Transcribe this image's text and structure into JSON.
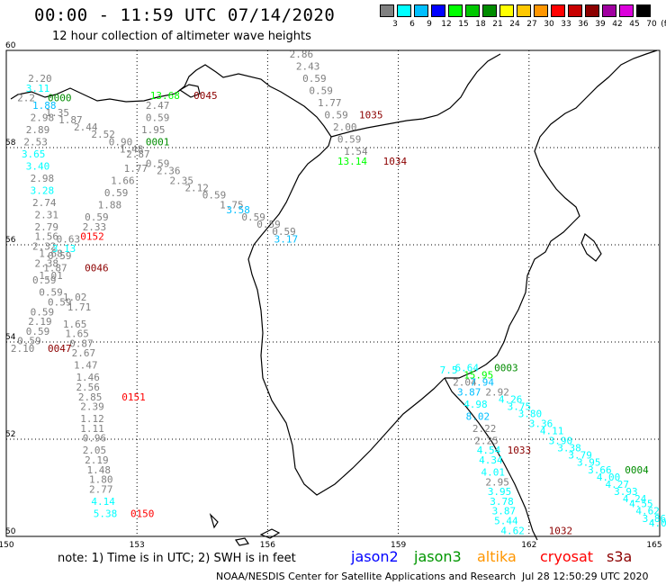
{
  "header": {
    "title": "00:00 - 11:59 UTC 07/14/2020",
    "subtitle": "12 hour collection of altimeter wave heights"
  },
  "legend": {
    "unit": "(ft)",
    "bins": [
      {
        "label": "3",
        "color": "#808080"
      },
      {
        "label": "6",
        "color": "#00ffff"
      },
      {
        "label": "9",
        "color": "#00bfff"
      },
      {
        "label": "12",
        "color": "#0000ff"
      },
      {
        "label": "15",
        "color": "#00ff00"
      },
      {
        "label": "18",
        "color": "#00c800"
      },
      {
        "label": "21",
        "color": "#008c00"
      },
      {
        "label": "24",
        "color": "#ffff00"
      },
      {
        "label": "27",
        "color": "#ffc800"
      },
      {
        "label": "30",
        "color": "#ff9600"
      },
      {
        "label": "33",
        "color": "#ff0000"
      },
      {
        "label": "36",
        "color": "#c80000"
      },
      {
        "label": "39",
        "color": "#8c0000"
      },
      {
        "label": "42",
        "color": "#a000a0"
      },
      {
        "label": "45",
        "color": "#dc00dc"
      },
      {
        "label": "70",
        "color": "#000000"
      }
    ]
  },
  "map": {
    "lon_range": [
      150,
      165
    ],
    "lat_range": [
      50,
      60
    ],
    "lon_ticks": [
      "150",
      "153",
      "156",
      "159",
      "162",
      "165"
    ],
    "lat_ticks": [
      "50",
      "52",
      "54",
      "56",
      "58",
      "60"
    ],
    "grid": "dotted"
  },
  "satellites": {
    "jason2": {
      "label": "jason2",
      "color": "#0000ff"
    },
    "jason3": {
      "label": "jason3",
      "color": "#009600"
    },
    "altika": {
      "label": "altika",
      "color": "#ff9600"
    },
    "cryosat": {
      "label": "cryosat",
      "color": "#ff0000"
    },
    "s3a": {
      "label": "s3a",
      "color": "#8c0000"
    }
  },
  "footer": {
    "note": "note: 1) Time is in UTC; 2) SWH is in feet",
    "credit": "NOAA/NESDIS Center for Satellite Applications and Research",
    "stamp": "Jul 28 12:50:29 UTC 2020"
  },
  "labels": [
    {
      "t": "2.20",
      "lon": 150.5,
      "lat": 59.35,
      "c": "#808080"
    },
    {
      "t": "3.11",
      "lon": 150.45,
      "lat": 59.15,
      "c": "#00ffff"
    },
    {
      "t": "2.2",
      "lon": 150.25,
      "lat": 58.95,
      "c": "#808080"
    },
    {
      "t": "0000",
      "lon": 150.95,
      "lat": 58.95,
      "c": "#008c00"
    },
    {
      "t": "1.88",
      "lon": 150.6,
      "lat": 58.8,
      "c": "#00bfff"
    },
    {
      "t": "1.35",
      "lon": 150.9,
      "lat": 58.65,
      "c": "#808080"
    },
    {
      "t": "2.98",
      "lon": 150.55,
      "lat": 58.55,
      "c": "#808080"
    },
    {
      "t": "1.87",
      "lon": 151.2,
      "lat": 58.5,
      "c": "#808080"
    },
    {
      "t": "2.89",
      "lon": 150.45,
      "lat": 58.3,
      "c": "#808080"
    },
    {
      "t": "2.44",
      "lon": 151.55,
      "lat": 58.35,
      "c": "#808080"
    },
    {
      "t": "2.52",
      "lon": 151.95,
      "lat": 58.2,
      "c": "#808080"
    },
    {
      "t": "2.53",
      "lon": 150.4,
      "lat": 58.05,
      "c": "#808080"
    },
    {
      "t": "0.90",
      "lon": 152.35,
      "lat": 58.05,
      "c": "#808080"
    },
    {
      "t": "0001",
      "lon": 153.2,
      "lat": 58.05,
      "c": "#008c00"
    },
    {
      "t": "3.65",
      "lon": 150.35,
      "lat": 57.8,
      "c": "#00ffff"
    },
    {
      "t": "1.48",
      "lon": 152.6,
      "lat": 57.9,
      "c": "#808080"
    },
    {
      "t": "2.87",
      "lon": 152.75,
      "lat": 57.8,
      "c": "#808080"
    },
    {
      "t": "3.40",
      "lon": 150.45,
      "lat": 57.55,
      "c": "#00ffff"
    },
    {
      "t": "0.59",
      "lon": 153.2,
      "lat": 57.6,
      "c": "#808080"
    },
    {
      "t": "1.77",
      "lon": 152.7,
      "lat": 57.5,
      "c": "#808080"
    },
    {
      "t": "2.98",
      "lon": 150.55,
      "lat": 57.3,
      "c": "#808080"
    },
    {
      "t": "2.36",
      "lon": 153.45,
      "lat": 57.45,
      "c": "#808080"
    },
    {
      "t": "1.66",
      "lon": 152.4,
      "lat": 57.25,
      "c": "#808080"
    },
    {
      "t": "2.35",
      "lon": 153.75,
      "lat": 57.25,
      "c": "#808080"
    },
    {
      "t": "3.28",
      "lon": 150.55,
      "lat": 57.05,
      "c": "#00ffff"
    },
    {
      "t": "2.12",
      "lon": 154.1,
      "lat": 57.1,
      "c": "#808080"
    },
    {
      "t": "0.59",
      "lon": 152.25,
      "lat": 57.0,
      "c": "#808080"
    },
    {
      "t": "0.59",
      "lon": 154.5,
      "lat": 56.95,
      "c": "#808080"
    },
    {
      "t": "2.74",
      "lon": 150.6,
      "lat": 56.8,
      "c": "#808080"
    },
    {
      "t": "1.88",
      "lon": 152.1,
      "lat": 56.75,
      "c": "#808080"
    },
    {
      "t": "1.75",
      "lon": 154.9,
      "lat": 56.75,
      "c": "#808080"
    },
    {
      "t": "2.31",
      "lon": 150.65,
      "lat": 56.55,
      "c": "#808080"
    },
    {
      "t": "3.58",
      "lon": 155.05,
      "lat": 56.65,
      "c": "#00bfff"
    },
    {
      "t": "0.59",
      "lon": 151.8,
      "lat": 56.5,
      "c": "#808080"
    },
    {
      "t": "0.59",
      "lon": 155.4,
      "lat": 56.5,
      "c": "#808080"
    },
    {
      "t": "2.79",
      "lon": 150.65,
      "lat": 56.3,
      "c": "#808080"
    },
    {
      "t": "2.33",
      "lon": 151.75,
      "lat": 56.3,
      "c": "#808080"
    },
    {
      "t": "0.59",
      "lon": 155.75,
      "lat": 56.35,
      "c": "#808080"
    },
    {
      "t": "0.59",
      "lon": 156.1,
      "lat": 56.2,
      "c": "#808080"
    },
    {
      "t": "1.56",
      "lon": 150.65,
      "lat": 56.1,
      "c": "#808080"
    },
    {
      "t": "0.63",
      "lon": 151.15,
      "lat": 56.05,
      "c": "#808080"
    },
    {
      "t": "0152",
      "lon": 151.7,
      "lat": 56.1,
      "c": "#ff0000"
    },
    {
      "t": "3.17",
      "lon": 156.15,
      "lat": 56.05,
      "c": "#00bfff"
    },
    {
      "t": "2.32",
      "lon": 150.6,
      "lat": 55.9,
      "c": "#808080"
    },
    {
      "t": "3.13",
      "lon": 151.05,
      "lat": 55.85,
      "c": "#00ffff"
    },
    {
      "t": "1.68",
      "lon": 150.75,
      "lat": 55.75,
      "c": "#808080"
    },
    {
      "t": "0.59",
      "lon": 150.95,
      "lat": 55.7,
      "c": "#808080"
    },
    {
      "t": "2.38",
      "lon": 150.65,
      "lat": 55.55,
      "c": "#808080"
    },
    {
      "t": "1.87",
      "lon": 150.85,
      "lat": 55.45,
      "c": "#808080"
    },
    {
      "t": "0046",
      "lon": 151.8,
      "lat": 55.45,
      "c": "#8c0000"
    },
    {
      "t": "1.01",
      "lon": 150.75,
      "lat": 55.3,
      "c": "#808080"
    },
    {
      "t": "0.59",
      "lon": 150.6,
      "lat": 55.2,
      "c": "#808080"
    },
    {
      "t": "0.59",
      "lon": 150.75,
      "lat": 54.95,
      "c": "#808080"
    },
    {
      "t": "1.02",
      "lon": 151.3,
      "lat": 54.85,
      "c": "#808080"
    },
    {
      "t": "0.59",
      "lon": 150.95,
      "lat": 54.75,
      "c": "#808080"
    },
    {
      "t": "1.71",
      "lon": 151.4,
      "lat": 54.65,
      "c": "#808080"
    },
    {
      "t": "0.59",
      "lon": 150.55,
      "lat": 54.55,
      "c": "#808080"
    },
    {
      "t": "2.19",
      "lon": 150.5,
      "lat": 54.35,
      "c": "#808080"
    },
    {
      "t": "1.65",
      "lon": 151.3,
      "lat": 54.3,
      "c": "#808080"
    },
    {
      "t": "0.59",
      "lon": 150.45,
      "lat": 54.15,
      "c": "#808080"
    },
    {
      "t": "1.65",
      "lon": 151.35,
      "lat": 54.1,
      "c": "#808080"
    },
    {
      "t": "0.59",
      "lon": 150.25,
      "lat": 53.95,
      "c": "#808080"
    },
    {
      "t": "0.87",
      "lon": 151.45,
      "lat": 53.9,
      "c": "#808080"
    },
    {
      "t": "2.10",
      "lon": 150.1,
      "lat": 53.8,
      "c": "#808080"
    },
    {
      "t": "0047",
      "lon": 150.95,
      "lat": 53.8,
      "c": "#8c0000"
    },
    {
      "t": "2.67",
      "lon": 151.5,
      "lat": 53.7,
      "c": "#808080"
    },
    {
      "t": "1.47",
      "lon": 151.55,
      "lat": 53.45,
      "c": "#808080"
    },
    {
      "t": "1.46",
      "lon": 151.6,
      "lat": 53.2,
      "c": "#808080"
    },
    {
      "t": "2.56",
      "lon": 151.6,
      "lat": 53.0,
      "c": "#808080"
    },
    {
      "t": "2.85",
      "lon": 151.65,
      "lat": 52.8,
      "c": "#808080"
    },
    {
      "t": "0151",
      "lon": 152.65,
      "lat": 52.8,
      "c": "#ff0000"
    },
    {
      "t": "2.39",
      "lon": 151.7,
      "lat": 52.6,
      "c": "#808080"
    },
    {
      "t": "1.12",
      "lon": 151.7,
      "lat": 52.35,
      "c": "#808080"
    },
    {
      "t": "1.11",
      "lon": 151.7,
      "lat": 52.15,
      "c": "#808080"
    },
    {
      "t": "0.96",
      "lon": 151.75,
      "lat": 51.95,
      "c": "#808080"
    },
    {
      "t": "2.05",
      "lon": 151.75,
      "lat": 51.7,
      "c": "#808080"
    },
    {
      "t": "2.19",
      "lon": 151.8,
      "lat": 51.5,
      "c": "#808080"
    },
    {
      "t": "1.48",
      "lon": 151.85,
      "lat": 51.3,
      "c": "#808080"
    },
    {
      "t": "1.80",
      "lon": 151.9,
      "lat": 51.1,
      "c": "#808080"
    },
    {
      "t": "2.77",
      "lon": 151.9,
      "lat": 50.9,
      "c": "#808080"
    },
    {
      "t": "4.14",
      "lon": 151.95,
      "lat": 50.65,
      "c": "#00ffff"
    },
    {
      "t": "5.38",
      "lon": 152.0,
      "lat": 50.4,
      "c": "#00ffff"
    },
    {
      "t": "0150",
      "lon": 152.85,
      "lat": 50.4,
      "c": "#ff0000"
    },
    {
      "t": "13.68",
      "lon": 153.3,
      "lat": 59.0,
      "c": "#00ff00"
    },
    {
      "t": "0045",
      "lon": 154.3,
      "lat": 59.0,
      "c": "#8c0000"
    },
    {
      "t": "2.47",
      "lon": 153.2,
      "lat": 58.8,
      "c": "#808080"
    },
    {
      "t": "0.59",
      "lon": 153.2,
      "lat": 58.55,
      "c": "#808080"
    },
    {
      "t": "1.95",
      "lon": 153.1,
      "lat": 58.3,
      "c": "#808080"
    },
    {
      "t": "2.86",
      "lon": 156.5,
      "lat": 59.85,
      "c": "#808080"
    },
    {
      "t": "2.43",
      "lon": 156.65,
      "lat": 59.6,
      "c": "#808080"
    },
    {
      "t": "0.59",
      "lon": 156.8,
      "lat": 59.35,
      "c": "#808080"
    },
    {
      "t": "0.59",
      "lon": 156.95,
      "lat": 59.1,
      "c": "#808080"
    },
    {
      "t": "1.77",
      "lon": 157.15,
      "lat": 58.85,
      "c": "#808080"
    },
    {
      "t": "0.59",
      "lon": 157.3,
      "lat": 58.6,
      "c": "#808080"
    },
    {
      "t": "1035",
      "lon": 158.1,
      "lat": 58.6,
      "c": "#8c0000"
    },
    {
      "t": "2.00",
      "lon": 157.5,
      "lat": 58.35,
      "c": "#808080"
    },
    {
      "t": "0.59",
      "lon": 157.6,
      "lat": 58.1,
      "c": "#808080"
    },
    {
      "t": "1.54",
      "lon": 157.75,
      "lat": 57.85,
      "c": "#808080"
    },
    {
      "t": "13.14",
      "lon": 157.6,
      "lat": 57.65,
      "c": "#00ff00"
    },
    {
      "t": "1034",
      "lon": 158.65,
      "lat": 57.65,
      "c": "#8c0000"
    },
    {
      "t": "7.5",
      "lon": 159.95,
      "lat": 53.35,
      "c": "#00ffff"
    },
    {
      "t": "6.64",
      "lon": 160.3,
      "lat": 53.4,
      "c": "#00ffff"
    },
    {
      "t": "0003",
      "lon": 161.2,
      "lat": 53.4,
      "c": "#008c00"
    },
    {
      "t": "15.95",
      "lon": 160.5,
      "lat": 53.25,
      "c": "#00ff00"
    },
    {
      "t": "2.04",
      "lon": 160.25,
      "lat": 53.1,
      "c": "#808080"
    },
    {
      "t": "7.94",
      "lon": 160.65,
      "lat": 53.1,
      "c": "#00bfff"
    },
    {
      "t": "3.87",
      "lon": 160.35,
      "lat": 52.9,
      "c": "#00bfff"
    },
    {
      "t": "2.92",
      "lon": 161.0,
      "lat": 52.9,
      "c": "#808080"
    },
    {
      "t": "4.26",
      "lon": 161.3,
      "lat": 52.75,
      "c": "#00ffff"
    },
    {
      "t": "4.98",
      "lon": 160.5,
      "lat": 52.65,
      "c": "#00ffff"
    },
    {
      "t": "3.75",
      "lon": 161.5,
      "lat": 52.6,
      "c": "#00ffff"
    },
    {
      "t": "8.02",
      "lon": 160.55,
      "lat": 52.4,
      "c": "#00bfff"
    },
    {
      "t": "3.80",
      "lon": 161.75,
      "lat": 52.45,
      "c": "#00ffff"
    },
    {
      "t": "3.36",
      "lon": 162.0,
      "lat": 52.25,
      "c": "#00ffff"
    },
    {
      "t": "2.22",
      "lon": 160.7,
      "lat": 52.15,
      "c": "#808080"
    },
    {
      "t": "4.11",
      "lon": 162.25,
      "lat": 52.1,
      "c": "#00ffff"
    },
    {
      "t": "2.25",
      "lon": 160.75,
      "lat": 51.9,
      "c": "#808080"
    },
    {
      "t": "3.90",
      "lon": 162.45,
      "lat": 51.9,
      "c": "#00ffff"
    },
    {
      "t": "3.38",
      "lon": 162.65,
      "lat": 51.75,
      "c": "#00ffff"
    },
    {
      "t": "4.54",
      "lon": 160.8,
      "lat": 51.7,
      "c": "#00ffff"
    },
    {
      "t": "1033",
      "lon": 161.5,
      "lat": 51.7,
      "c": "#8c0000"
    },
    {
      "t": "3.79",
      "lon": 162.9,
      "lat": 51.6,
      "c": "#00ffff"
    },
    {
      "t": "4.34",
      "lon": 160.85,
      "lat": 51.5,
      "c": "#00ffff"
    },
    {
      "t": "3.95",
      "lon": 163.1,
      "lat": 51.45,
      "c": "#00ffff"
    },
    {
      "t": "3.66",
      "lon": 163.35,
      "lat": 51.3,
      "c": "#00ffff"
    },
    {
      "t": "0004",
      "lon": 164.2,
      "lat": 51.3,
      "c": "#008c00"
    },
    {
      "t": "4.01",
      "lon": 160.9,
      "lat": 51.25,
      "c": "#00ffff"
    },
    {
      "t": "4.00",
      "lon": 163.55,
      "lat": 51.15,
      "c": "#00ffff"
    },
    {
      "t": "2.95",
      "lon": 161.0,
      "lat": 51.05,
      "c": "#808080"
    },
    {
      "t": "4.27",
      "lon": 163.75,
      "lat": 51.0,
      "c": "#00ffff"
    },
    {
      "t": "3.95",
      "lon": 161.05,
      "lat": 50.85,
      "c": "#00ffff"
    },
    {
      "t": "3.93",
      "lon": 163.95,
      "lat": 50.85,
      "c": "#00ffff"
    },
    {
      "t": "4.24",
      "lon": 164.15,
      "lat": 50.7,
      "c": "#00ffff"
    },
    {
      "t": "3.78",
      "lon": 161.1,
      "lat": 50.65,
      "c": "#00ffff"
    },
    {
      "t": "4.55",
      "lon": 164.3,
      "lat": 50.6,
      "c": "#00ffff"
    },
    {
      "t": "3.87",
      "lon": 161.15,
      "lat": 50.45,
      "c": "#00ffff"
    },
    {
      "t": "4.62",
      "lon": 164.45,
      "lat": 50.45,
      "c": "#00ffff"
    },
    {
      "t": "5.44",
      "lon": 161.2,
      "lat": 50.25,
      "c": "#00ffff"
    },
    {
      "t": "3.86",
      "lon": 164.6,
      "lat": 50.3,
      "c": "#00ffff"
    },
    {
      "t": "4.04",
      "lon": 164.75,
      "lat": 50.2,
      "c": "#00ffff"
    },
    {
      "t": "4.62",
      "lon": 161.35,
      "lat": 50.05,
      "c": "#00ffff"
    },
    {
      "t": "1032",
      "lon": 162.45,
      "lat": 50.05,
      "c": "#8c0000"
    }
  ]
}
